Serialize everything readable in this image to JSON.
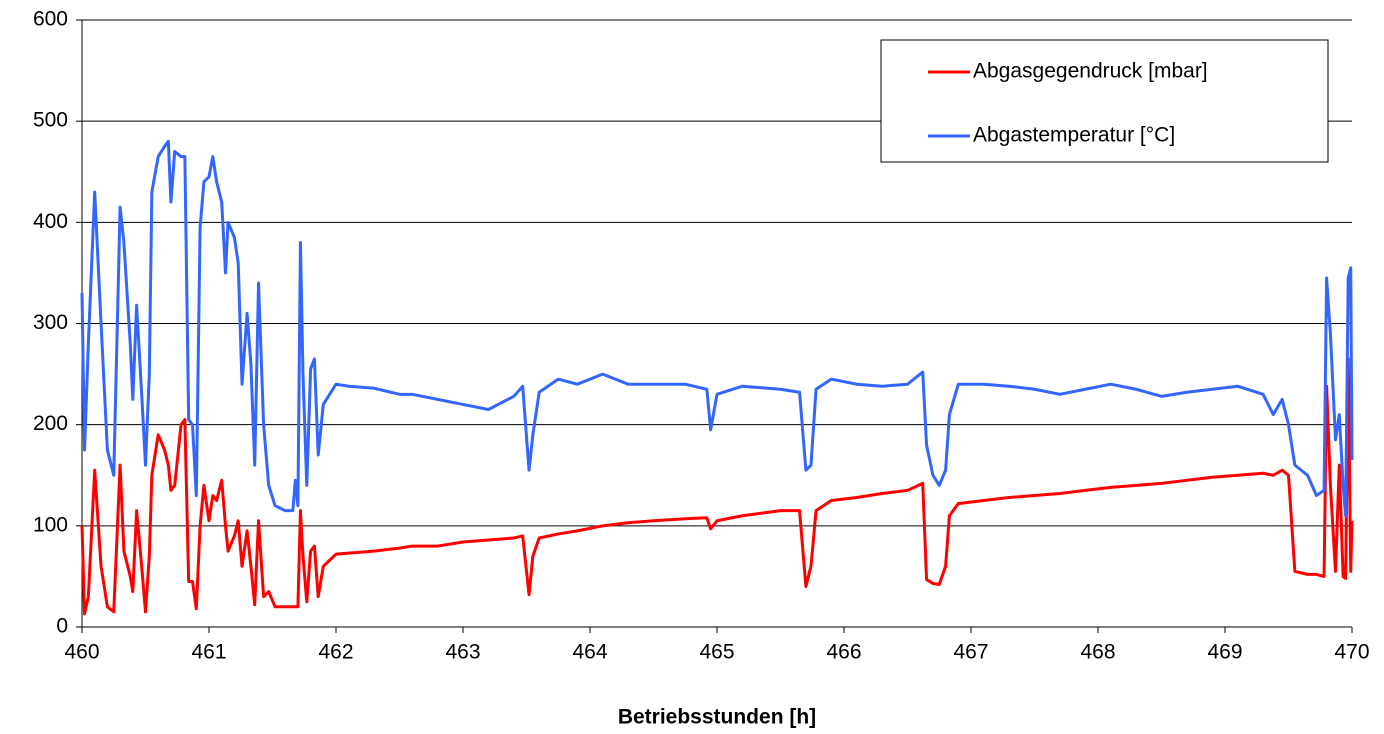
{
  "chart_data": {
    "type": "line",
    "x_label": "Betriebsstunden [h]",
    "x": [
      460.0,
      460.02,
      460.05,
      460.1,
      460.15,
      460.2,
      460.25,
      460.3,
      460.33,
      460.38,
      460.4,
      460.43,
      460.47,
      460.5,
      460.53,
      460.55,
      460.6,
      460.65,
      460.68,
      460.7,
      460.73,
      460.78,
      460.81,
      460.84,
      460.87,
      460.9,
      460.93,
      460.96,
      461.0,
      461.03,
      461.06,
      461.1,
      461.13,
      461.15,
      461.2,
      461.23,
      461.26,
      461.3,
      461.33,
      461.36,
      461.39,
      461.43,
      461.47,
      461.52,
      461.6,
      461.66,
      461.68,
      461.7,
      461.72,
      461.74,
      461.77,
      461.8,
      461.83,
      461.86,
      461.9,
      462.0,
      462.1,
      462.3,
      462.5,
      462.6,
      462.8,
      463.0,
      463.2,
      463.4,
      463.47,
      463.52,
      463.55,
      463.6,
      463.75,
      463.9,
      464.1,
      464.3,
      464.5,
      464.75,
      464.92,
      464.95,
      465.0,
      465.2,
      465.5,
      465.65,
      465.7,
      465.74,
      465.78,
      465.9,
      466.1,
      466.3,
      466.5,
      466.62,
      466.65,
      466.7,
      466.75,
      466.8,
      466.83,
      466.9,
      467.1,
      467.3,
      467.5,
      467.7,
      467.9,
      468.1,
      468.3,
      468.5,
      468.7,
      468.9,
      469.1,
      469.3,
      469.38,
      469.45,
      469.5,
      469.55,
      469.65,
      469.72,
      469.78,
      469.8,
      469.83,
      469.87,
      469.9,
      469.93,
      469.95,
      469.97,
      469.99,
      470.0
    ],
    "series": [
      {
        "name": "Abgasgegendruck [mbar]",
        "color": "#ff0000",
        "values": [
          100,
          13,
          30,
          155,
          60,
          20,
          15,
          160,
          75,
          50,
          35,
          115,
          60,
          15,
          70,
          150,
          190,
          175,
          160,
          135,
          140,
          200,
          205,
          45,
          45,
          18,
          100,
          140,
          105,
          130,
          125,
          145,
          100,
          75,
          90,
          105,
          60,
          95,
          60,
          22,
          105,
          30,
          35,
          20,
          20,
          20,
          20,
          20,
          115,
          70,
          25,
          75,
          80,
          30,
          60,
          72,
          73,
          75,
          78,
          80,
          80,
          84,
          86,
          88,
          90,
          32,
          70,
          88,
          92,
          95,
          100,
          103,
          105,
          107,
          108,
          97,
          105,
          110,
          115,
          115,
          40,
          60,
          115,
          125,
          128,
          132,
          135,
          142,
          47,
          43,
          42,
          60,
          110,
          122,
          125,
          128,
          130,
          132,
          135,
          138,
          140,
          142,
          145,
          148,
          150,
          152,
          150,
          155,
          150,
          55,
          52,
          52,
          50,
          238,
          140,
          55,
          160,
          50,
          48,
          265,
          55,
          105
        ]
      },
      {
        "name": "Abgastemperatur [°C]",
        "color": "#3366ff",
        "values": [
          330,
          175,
          280,
          430,
          300,
          175,
          150,
          415,
          380,
          280,
          225,
          318,
          230,
          160,
          250,
          430,
          465,
          475,
          480,
          420,
          470,
          465,
          465,
          205,
          200,
          130,
          395,
          440,
          445,
          465,
          440,
          420,
          350,
          400,
          385,
          360,
          240,
          310,
          260,
          160,
          340,
          200,
          140,
          120,
          115,
          115,
          145,
          120,
          380,
          250,
          140,
          255,
          265,
          170,
          220,
          240,
          238,
          236,
          230,
          230,
          225,
          220,
          215,
          228,
          238,
          155,
          190,
          232,
          245,
          240,
          250,
          240,
          240,
          240,
          235,
          195,
          230,
          238,
          235,
          232,
          155,
          160,
          235,
          245,
          240,
          238,
          240,
          252,
          180,
          150,
          140,
          155,
          210,
          240,
          240,
          238,
          235,
          230,
          235,
          240,
          235,
          228,
          232,
          235,
          238,
          230,
          210,
          225,
          200,
          160,
          150,
          130,
          135,
          345,
          290,
          185,
          210,
          140,
          110,
          345,
          355,
          165
        ]
      }
    ],
    "xlim": [
      460,
      470
    ],
    "xticks": [
      460,
      461,
      462,
      463,
      464,
      465,
      466,
      467,
      468,
      469,
      470
    ],
    "ylim": [
      0,
      600
    ],
    "yticks": [
      0,
      100,
      200,
      300,
      400,
      500,
      600
    ],
    "grid": true,
    "legend": "upper right"
  }
}
